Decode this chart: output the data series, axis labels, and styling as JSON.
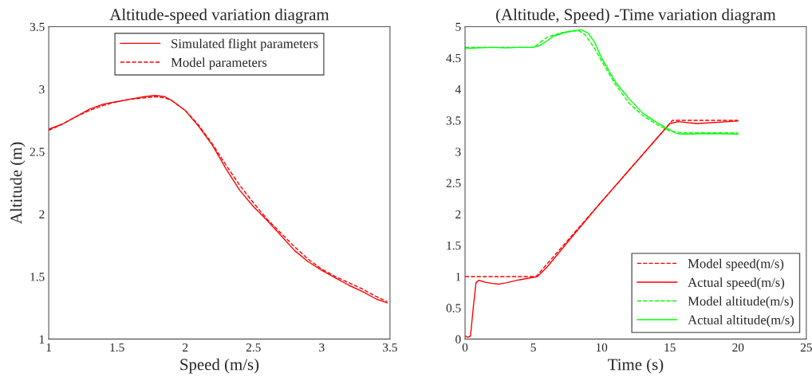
{
  "chart_data": [
    {
      "type": "line",
      "title": "Altitude-speed variation diagram",
      "xlabel": "Speed (m/s)",
      "ylabel": "Altitude (m)",
      "xlim": [
        1,
        3.5
      ],
      "ylim": [
        1,
        3.5
      ],
      "xticks": [
        1,
        1.5,
        2,
        2.5,
        3,
        3.5
      ],
      "yticks": [
        1,
        1.5,
        2,
        2.5,
        3,
        3.5
      ],
      "grid": false,
      "legend": "top",
      "series": [
        {
          "name": "Simulated flight parameters",
          "color": "#ff0000",
          "line_style": "solid",
          "x": [
            1,
            1.1,
            1.2,
            1.3,
            1.4,
            1.5,
            1.6,
            1.7,
            1.78,
            1.85,
            1.9,
            2,
            2.1,
            2.2,
            2.3,
            2.4,
            2.5,
            2.6,
            2.7,
            2.8,
            2.9,
            3,
            3.1,
            3.2,
            3.3,
            3.4,
            3.48
          ],
          "values": [
            2.68,
            2.72,
            2.78,
            2.84,
            2.88,
            2.9,
            2.92,
            2.94,
            2.95,
            2.94,
            2.91,
            2.83,
            2.7,
            2.55,
            2.36,
            2.19,
            2.06,
            1.95,
            1.83,
            1.71,
            1.62,
            1.55,
            1.49,
            1.43,
            1.38,
            1.32,
            1.29
          ]
        },
        {
          "name": "Model parameters",
          "color": "#ff0000",
          "line_style": "dashed",
          "x": [
            1,
            1.1,
            1.2,
            1.3,
            1.4,
            1.5,
            1.6,
            1.7,
            1.78,
            1.85,
            1.9,
            2,
            2.1,
            2.2,
            2.3,
            2.4,
            2.5,
            2.6,
            2.7,
            2.8,
            2.9,
            3,
            3.1,
            3.2,
            3.3,
            3.4,
            3.48
          ],
          "values": [
            2.67,
            2.72,
            2.78,
            2.83,
            2.87,
            2.9,
            2.92,
            2.93,
            2.94,
            2.93,
            2.91,
            2.83,
            2.71,
            2.56,
            2.39,
            2.23,
            2.09,
            1.96,
            1.85,
            1.74,
            1.64,
            1.56,
            1.5,
            1.45,
            1.4,
            1.34,
            1.3
          ]
        }
      ]
    },
    {
      "type": "line",
      "title": "(Altitude, Speed) -Time variation diagram",
      "xlabel": "Time (s)",
      "xlim": [
        0,
        25
      ],
      "ylim": [
        0,
        5
      ],
      "xticks": [
        0,
        5,
        10,
        15,
        20,
        25
      ],
      "yticks": [
        0,
        0.5,
        1,
        1.5,
        2,
        2.5,
        3,
        3.5,
        4,
        4.5,
        5
      ],
      "grid": false,
      "legend": "bottom right",
      "series": [
        {
          "name": "Model speed(m/s)",
          "color": "#ff0000",
          "line_style": "dashed",
          "x": [
            0,
            5.2,
            15.2,
            20
          ],
          "values": [
            1,
            1,
            3.5,
            3.5
          ]
        },
        {
          "name": "Actual speed(m/s)",
          "color": "#ff0000",
          "line_style": "solid",
          "x": [
            0,
            0.2,
            0.4,
            0.6,
            0.8,
            1,
            1.5,
            2,
            2.5,
            3,
            4,
            5.3,
            6,
            8,
            10,
            12,
            14,
            15,
            15.6,
            17,
            20
          ],
          "values": [
            0.05,
            0.03,
            0.05,
            0.5,
            0.9,
            0.94,
            0.91,
            0.89,
            0.88,
            0.9,
            0.95,
            1,
            1.15,
            1.68,
            2.2,
            2.7,
            3.2,
            3.45,
            3.48,
            3.45,
            3.49
          ]
        },
        {
          "name": "Model altitude(m/s)",
          "color": "#00ff00",
          "line_style": "dashed",
          "x": [
            0,
            1,
            2,
            3,
            4,
            5,
            5.2,
            6,
            7,
            8.3,
            8.8,
            9.5,
            10,
            11,
            12,
            13,
            14,
            15,
            16,
            18,
            20
          ],
          "values": [
            4.67,
            4.67,
            4.67,
            4.67,
            4.67,
            4.67,
            4.7,
            4.83,
            4.9,
            4.94,
            4.87,
            4.65,
            4.45,
            4.08,
            3.78,
            3.58,
            3.44,
            3.33,
            3.3,
            3.3,
            3.3
          ]
        },
        {
          "name": "Actual altitude(m/s)",
          "color": "#00ff00",
          "line_style": "solid",
          "x": [
            0,
            1,
            2,
            3,
            4,
            5,
            5.5,
            6.5,
            7.5,
            8.5,
            9,
            9.5,
            10,
            11,
            12,
            13,
            14,
            15,
            15.5,
            16,
            18,
            20
          ],
          "values": [
            4.65,
            4.66,
            4.67,
            4.66,
            4.67,
            4.67,
            4.7,
            4.85,
            4.92,
            4.95,
            4.9,
            4.75,
            4.5,
            4.12,
            3.85,
            3.62,
            3.47,
            3.35,
            3.29,
            3.28,
            3.29,
            3.28
          ]
        }
      ]
    }
  ]
}
